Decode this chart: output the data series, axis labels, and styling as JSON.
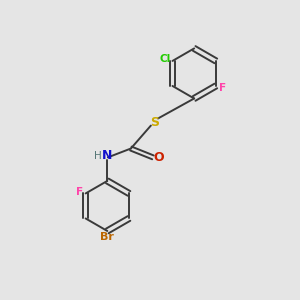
{
  "background_color": "#e5e5e5",
  "bond_color": "#3a3a3a",
  "atom_colors": {
    "Cl": "#22cc00",
    "F_top": "#ff44aa",
    "F_bottom": "#ff44aa",
    "S": "#ccaa00",
    "N": "#1111cc",
    "H": "#557777",
    "O": "#cc2200",
    "Br": "#bb6600"
  },
  "figsize": [
    3.0,
    3.0
  ],
  "dpi": 100
}
